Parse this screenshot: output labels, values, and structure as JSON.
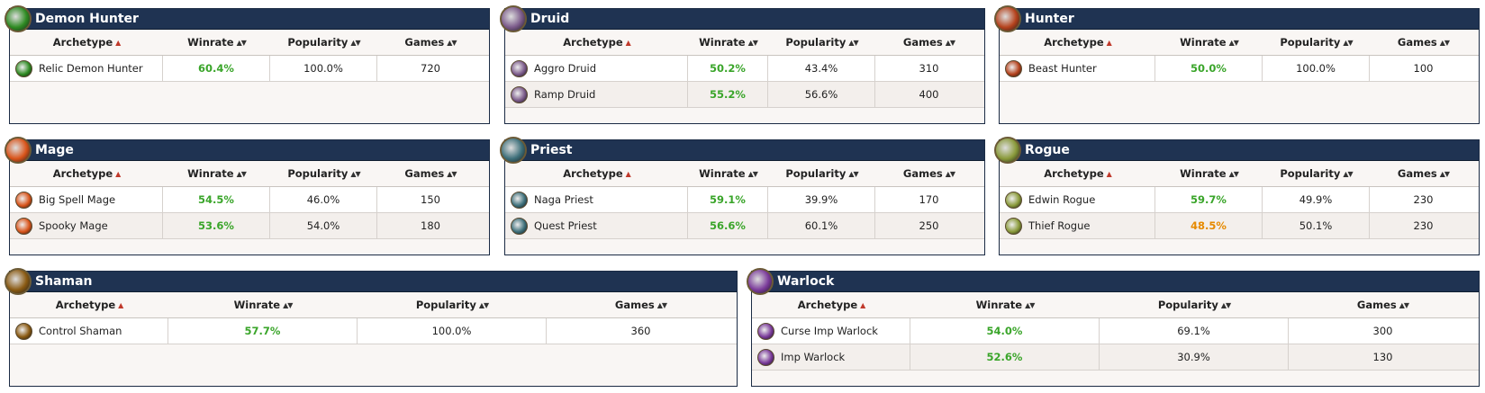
{
  "columns": {
    "archetype": "Archetype",
    "winrate": "Winrate",
    "popularity": "Popularity",
    "games": "Games"
  },
  "colors": {
    "header_bg": "#1f3352",
    "win_green": "#3aa52a",
    "win_orange": "#e68a00"
  },
  "panels": [
    {
      "name": "Demon Hunter",
      "icon": "demon-hunter-icon",
      "color": "#2e8b22",
      "rows": [
        {
          "name": "Relic Demon Hunter",
          "winrate": "60.4%",
          "wr_color": "green",
          "popularity": "100.0%",
          "games": "720"
        }
      ]
    },
    {
      "name": "Druid",
      "icon": "druid-icon",
      "color": "#7b5a8a",
      "rows": [
        {
          "name": "Aggro Druid",
          "winrate": "50.2%",
          "wr_color": "green",
          "popularity": "43.4%",
          "games": "310"
        },
        {
          "name": "Ramp Druid",
          "winrate": "55.2%",
          "wr_color": "green",
          "popularity": "56.6%",
          "games": "400"
        }
      ]
    },
    {
      "name": "Hunter",
      "icon": "hunter-icon",
      "color": "#b5421c",
      "rows": [
        {
          "name": "Beast Hunter",
          "winrate": "50.0%",
          "wr_color": "green",
          "popularity": "100.0%",
          "games": "100"
        }
      ]
    },
    {
      "name": "Mage",
      "icon": "mage-icon",
      "color": "#d9541a",
      "rows": [
        {
          "name": "Big Spell Mage",
          "winrate": "54.5%",
          "wr_color": "green",
          "popularity": "46.0%",
          "games": "150"
        },
        {
          "name": "Spooky Mage",
          "winrate": "53.6%",
          "wr_color": "green",
          "popularity": "54.0%",
          "games": "180"
        }
      ]
    },
    {
      "name": "Priest",
      "icon": "priest-icon",
      "color": "#3d6f7a",
      "rows": [
        {
          "name": "Naga Priest",
          "winrate": "59.1%",
          "wr_color": "green",
          "popularity": "39.9%",
          "games": "170"
        },
        {
          "name": "Quest Priest",
          "winrate": "56.6%",
          "wr_color": "green",
          "popularity": "60.1%",
          "games": "250"
        }
      ]
    },
    {
      "name": "Rogue",
      "icon": "rogue-icon",
      "color": "#8a9a3a",
      "rows": [
        {
          "name": "Edwin Rogue",
          "winrate": "59.7%",
          "wr_color": "green",
          "popularity": "49.9%",
          "games": "230"
        },
        {
          "name": "Thief Rogue",
          "winrate": "48.5%",
          "wr_color": "orange",
          "popularity": "50.1%",
          "games": "230"
        }
      ]
    },
    {
      "name": "Shaman",
      "icon": "shaman-icon",
      "color": "#8a5a12",
      "rows": [
        {
          "name": "Control Shaman",
          "winrate": "57.7%",
          "wr_color": "green",
          "popularity": "100.0%",
          "games": "360"
        }
      ]
    },
    {
      "name": "Warlock",
      "icon": "warlock-icon",
      "color": "#7a3a9a",
      "rows": [
        {
          "name": "Curse Imp Warlock",
          "winrate": "54.0%",
          "wr_color": "green",
          "popularity": "69.1%",
          "games": "300"
        },
        {
          "name": "Imp Warlock",
          "winrate": "52.6%",
          "wr_color": "green",
          "popularity": "30.9%",
          "games": "130"
        }
      ]
    }
  ]
}
